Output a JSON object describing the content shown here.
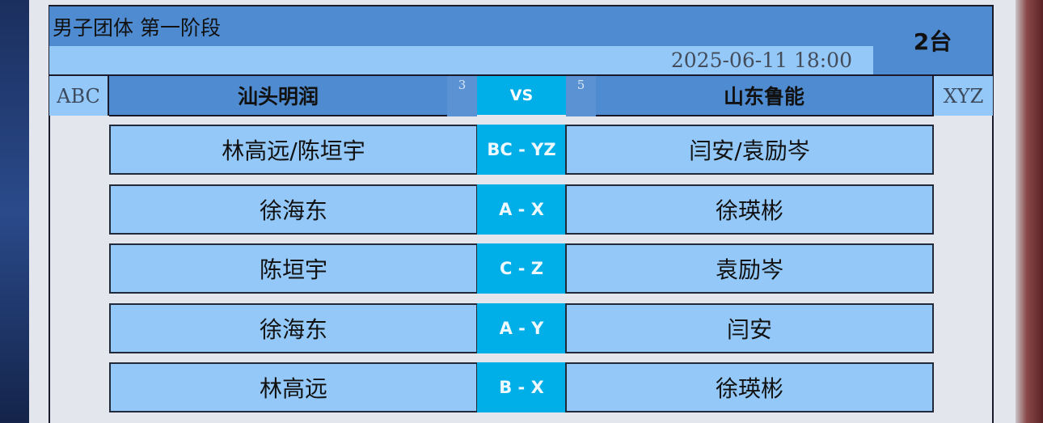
{
  "header": {
    "title": "男子团体 第一阶段",
    "datetime": "2025-06-11 18:00",
    "table": "2台"
  },
  "teams": {
    "left_code": "ABC",
    "left_name": "汕头明润",
    "left_score": "3",
    "vs": "VS",
    "right_score": "5",
    "right_name": "山东鲁能",
    "right_code": "XYZ"
  },
  "matches": [
    {
      "left": "林高远/陈垣宇",
      "code": "BC - YZ",
      "right": "闫安/袁励岑"
    },
    {
      "left": "徐海东",
      "code": "A - X",
      "right": "徐瑛彬"
    },
    {
      "left": "陈垣宇",
      "code": "C - Z",
      "right": "袁励岑"
    },
    {
      "left": "徐海东",
      "code": "A - Y",
      "right": "闫安"
    },
    {
      "left": "林高远",
      "code": "B - X",
      "right": "徐瑛彬"
    }
  ],
  "colors": {
    "header_blue": "#4f8bd0",
    "light_blue": "#93c8f8",
    "vs_cyan": "#00aee8"
  }
}
